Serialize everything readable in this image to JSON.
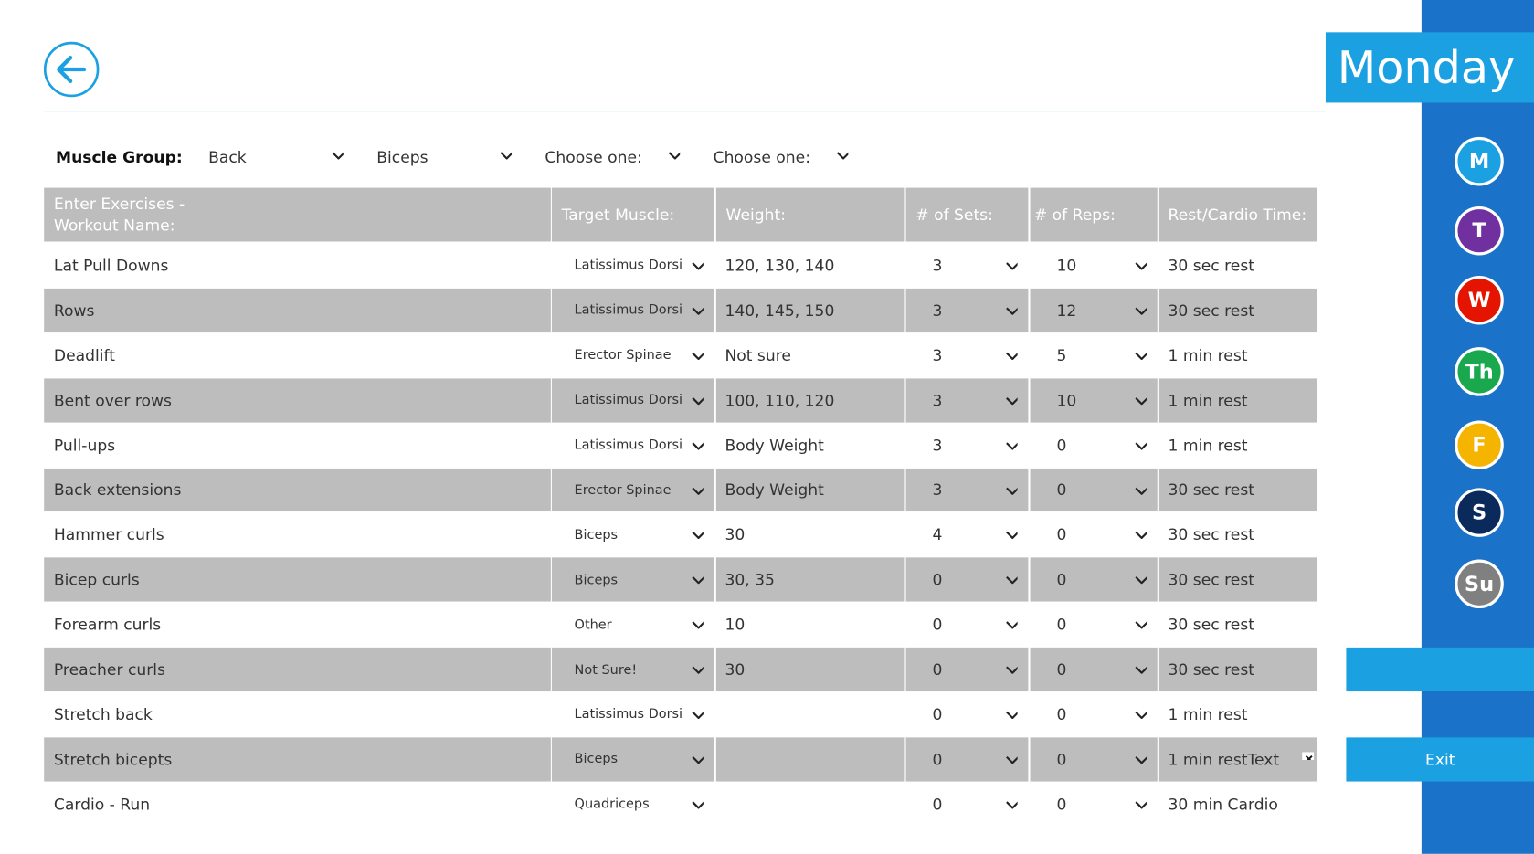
{
  "header": {
    "day_title": "Monday"
  },
  "filters": {
    "label": "Muscle Group:",
    "options": [
      "Back",
      "Biceps",
      "Choose one:",
      "Choose one:"
    ]
  },
  "table": {
    "headers": [
      "Enter Exercises - Workout Name:",
      "Target Muscle:",
      "Weight:",
      "# of Sets:",
      "# of Reps:",
      "Rest/Cardio Time:"
    ],
    "rows": [
      [
        "Lat Pull Downs",
        "Latissimus Dorsi",
        "120, 130, 140",
        "3",
        "10",
        "30 sec rest"
      ],
      [
        "Rows",
        "Latissimus Dorsi",
        "140, 145, 150",
        "3",
        "12",
        "30 sec rest"
      ],
      [
        "Deadlift",
        "Erector Spinae",
        "Not sure",
        "3",
        "5",
        "1 min rest"
      ],
      [
        "Bent over rows",
        "Latissimus Dorsi",
        "100, 110, 120",
        "3",
        "10",
        "1 min rest"
      ],
      [
        "Pull-ups",
        "Latissimus Dorsi",
        "Body Weight",
        "3",
        "0",
        "1 min rest"
      ],
      [
        "Back extensions",
        "Erector Spinae",
        "Body Weight",
        "3",
        "0",
        "30 sec rest"
      ],
      [
        "Hammer curls",
        "Biceps",
        "30",
        "4",
        "0",
        "30 sec rest"
      ],
      [
        "Bicep curls",
        "Biceps",
        "30, 35",
        "0",
        "0",
        "30 sec rest"
      ],
      [
        "Forearm curls",
        "Other",
        "10",
        "0",
        "0",
        "30 sec rest"
      ],
      [
        "Preacher curls",
        "Not Sure!",
        "30",
        "0",
        "0",
        "30 sec rest"
      ],
      [
        "Stretch back",
        "Latissimus Dorsi",
        "",
        "0",
        "0",
        "1 min rest"
      ],
      [
        "Stretch bicepts",
        "Biceps",
        "",
        "0",
        "0",
        "1 min restText"
      ],
      [
        "Cardio - Run",
        "Quadriceps",
        "",
        "0",
        "0",
        "30 min Cardio"
      ]
    ]
  },
  "sidebar": {
    "days": [
      {
        "label": "M",
        "color": "#1ba1e2"
      },
      {
        "label": "T",
        "color": "#7030a0"
      },
      {
        "label": "W",
        "color": "#e51400"
      },
      {
        "label": "Th",
        "color": "#1aa84f"
      },
      {
        "label": "F",
        "color": "#f5b400"
      },
      {
        "label": "S",
        "color": "#0b2a5c"
      },
      {
        "label": "Su",
        "color": "#808080"
      }
    ],
    "exit": "Exit"
  }
}
